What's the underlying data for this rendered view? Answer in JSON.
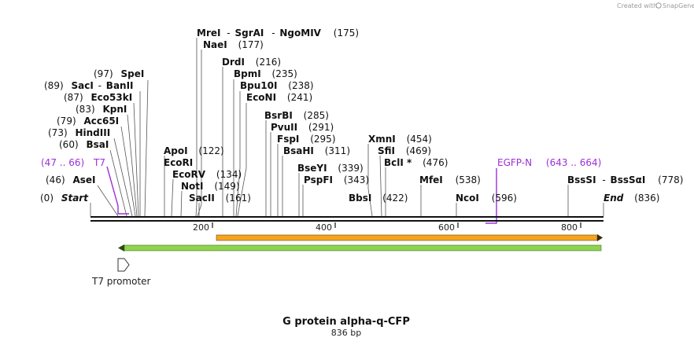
{
  "credit": {
    "prefix": "Created with",
    "brand": "SnapGene"
  },
  "title": "G protein alpha-q-CFP",
  "length_label": "836 bp",
  "ends": {
    "start": "Start",
    "start_pos": "(0)",
    "end": "End",
    "end_pos": "(836)"
  },
  "ruler": {
    "t200": "200",
    "t400": "400",
    "t600": "600",
    "t800": "800"
  },
  "enzymes": {
    "asei": {
      "name": "AseI",
      "pos": "(46)"
    },
    "bsai": {
      "name": "BsaI",
      "pos": "(60)"
    },
    "hindiii": {
      "name": "HindIII",
      "pos": "(73)"
    },
    "acc65i": {
      "name": "Acc65I",
      "pos": "(79)"
    },
    "kpni": {
      "name": "KpnI",
      "pos": "(83)"
    },
    "eco53ki": {
      "name": "Eco53kI",
      "pos": "(87)"
    },
    "saci": {
      "name": "SacI",
      "name2": "BanII",
      "pos": "(89)"
    },
    "spei": {
      "name": "SpeI",
      "pos": "(97)"
    },
    "apoi": {
      "name": "ApoI",
      "pos": "(122)"
    },
    "ecori": {
      "name": "EcoRI"
    },
    "ecorv": {
      "name": "EcoRV",
      "pos": "(134)"
    },
    "noti": {
      "name": "NotI",
      "pos": "(149)"
    },
    "sacii": {
      "name": "SacII",
      "pos": "(161)"
    },
    "mrei": {
      "name": "MreI",
      "name2": "SgrAI",
      "name3": "NgoMIV",
      "pos": "(175)"
    },
    "naei": {
      "name": "NaeI",
      "pos": "(177)"
    },
    "drdi": {
      "name": "DrdI",
      "pos": "(216)"
    },
    "bpmi": {
      "name": "BpmI",
      "pos": "(235)"
    },
    "bpu10i": {
      "name": "Bpu10I",
      "pos": "(238)"
    },
    "econi": {
      "name": "EcoNI",
      "pos": "(241)"
    },
    "bsrbi": {
      "name": "BsrBI",
      "pos": "(285)"
    },
    "pvuii": {
      "name": "PvuII",
      "pos": "(291)"
    },
    "fspi": {
      "name": "FspI",
      "pos": "(295)"
    },
    "bsahi": {
      "name": "BsaHI",
      "pos": "(311)"
    },
    "bseyi": {
      "name": "BseYI",
      "pos": "(339)"
    },
    "pspfi": {
      "name": "PspFI",
      "pos": "(343)"
    },
    "bbsi": {
      "name": "BbsI",
      "pos": "(422)"
    },
    "xmni": {
      "name": "XmnI",
      "pos": "(454)"
    },
    "sfii": {
      "name": "SfiI",
      "pos": "(469)"
    },
    "bcli": {
      "name": "BclI *",
      "pos": "(476)"
    },
    "mfei": {
      "name": "MfeI",
      "pos": "(538)"
    },
    "ncoi": {
      "name": "NcoI",
      "pos": "(596)"
    },
    "bsssi": {
      "name": "BssSI",
      "name2": "BssSαI",
      "pos": "(778)"
    }
  },
  "primers": {
    "t7": {
      "range": "(47 .. 66)",
      "name": "T7"
    },
    "egfp": {
      "name": "EGFP-N",
      "range": "(643 .. 664)"
    }
  },
  "features": {
    "t7_promoter": "T7 promoter"
  },
  "colors": {
    "primer": "#9b30d9",
    "cds_orange": "#f7a41d",
    "cds_green": "#8ed44f"
  }
}
